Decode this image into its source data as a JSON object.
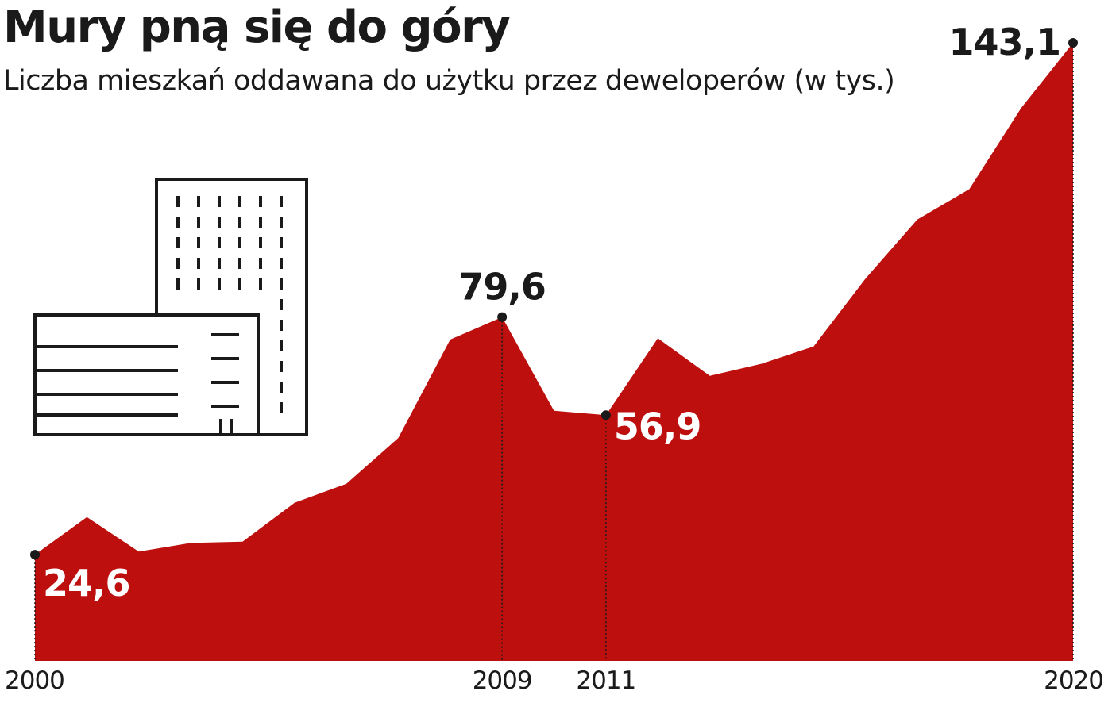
{
  "title": "Mury pną się do góry",
  "subtitle": "Liczba mieszkań oddawana do użytku przez deweloperów (w tys.)",
  "colors": {
    "area": "#be0f0f",
    "text": "#1a1a1a"
  },
  "icon": "apartment-buildings-icon",
  "chart_data": {
    "type": "area",
    "title": "Mury pną się do góry",
    "subtitle": "Liczba mieszkań oddawana do użytku przez deweloperów (w tys.)",
    "x": [
      2000,
      2001,
      2002,
      2003,
      2004,
      2005,
      2006,
      2007,
      2008,
      2009,
      2010,
      2011,
      2012,
      2013,
      2014,
      2015,
      2016,
      2017,
      2018,
      2019,
      2020
    ],
    "values": [
      24.6,
      33.3,
      25.3,
      27.3,
      27.6,
      36.6,
      41.0,
      51.6,
      74.4,
      79.6,
      57.9,
      56.9,
      74.7,
      66.0,
      68.8,
      72.8,
      88.5,
      102.2,
      109.2,
      128.0,
      143.1
    ],
    "ylim": [
      0,
      143.1
    ],
    "x_ticks": [
      {
        "year": 2000,
        "label": "2000"
      },
      {
        "year": 2009,
        "label": "2009"
      },
      {
        "year": 2011,
        "label": "2011"
      },
      {
        "year": 2020,
        "label": "2020"
      }
    ],
    "annotations": [
      {
        "year": 2000,
        "value": 24.6,
        "label": "24,6",
        "style": "light"
      },
      {
        "year": 2009,
        "value": 79.6,
        "label": "79,6",
        "style": "dark"
      },
      {
        "year": 2011,
        "value": 56.9,
        "label": "56,9",
        "style": "light"
      },
      {
        "year": 2020,
        "value": 143.1,
        "label": "143,1",
        "style": "dark"
      }
    ],
    "grid": false,
    "legend": "none"
  }
}
